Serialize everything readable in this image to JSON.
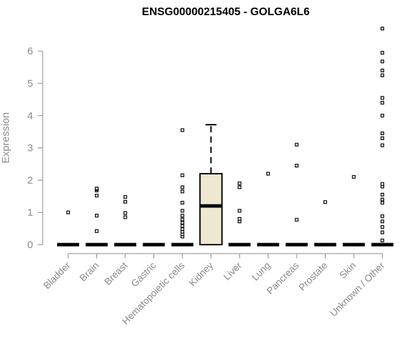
{
  "chart_data": {
    "type": "boxplot",
    "title": "ENSG00000215405 - GOLGA6L6",
    "xlabel": "",
    "ylabel": "Expression",
    "ylim": [
      0,
      7
    ],
    "yticks": [
      0,
      1,
      2,
      3,
      4,
      5,
      6
    ],
    "grid": false,
    "legend": "none",
    "colors": {
      "axis": "#8a8a8a",
      "box_fill": "#efe8d0",
      "box_stroke": "#000000",
      "median": "#000000",
      "outlier": "#000000",
      "title": "#000000"
    },
    "categories": [
      "Bladder",
      "Brain",
      "Breast",
      "Gastric",
      "Hematopoietic cells",
      "Kidney",
      "Liver",
      "Lung",
      "Pancreas",
      "Prostate",
      "Skin",
      "Unknown / Other"
    ],
    "boxes": [
      {
        "category": "Bladder",
        "min": 0,
        "q1": 0,
        "median": 0,
        "q3": 0,
        "max": 0,
        "outliers": [
          1.0
        ]
      },
      {
        "category": "Brain",
        "min": 0,
        "q1": 0,
        "median": 0,
        "q3": 0,
        "max": 0,
        "outliers": [
          0.42,
          0.9,
          1.52,
          1.68,
          1.72,
          1.74
        ]
      },
      {
        "category": "Breast",
        "min": 0,
        "q1": 0,
        "median": 0,
        "q3": 0,
        "max": 0,
        "outliers": [
          0.85,
          0.98,
          1.33,
          1.48
        ]
      },
      {
        "category": "Gastric",
        "min": 0,
        "q1": 0,
        "median": 0,
        "q3": 0,
        "max": 0,
        "outliers": []
      },
      {
        "category": "Hematopoietic cells",
        "min": 0,
        "q1": 0,
        "median": 0,
        "q3": 0,
        "max": 0,
        "outliers": [
          0.25,
          0.32,
          0.4,
          0.48,
          0.58,
          0.68,
          0.78,
          0.9,
          1.05,
          1.3,
          1.65,
          1.78,
          2.15,
          3.55
        ]
      },
      {
        "category": "Kidney",
        "min": 0,
        "q1": 0,
        "median": 1.2,
        "q3": 2.2,
        "max": 3.72,
        "outliers": []
      },
      {
        "category": "Liver",
        "min": 0,
        "q1": 0,
        "median": 0,
        "q3": 0,
        "max": 0,
        "outliers": [
          0.72,
          0.8,
          1.05,
          1.78,
          1.9
        ]
      },
      {
        "category": "Lung",
        "min": 0,
        "q1": 0,
        "median": 0,
        "q3": 0,
        "max": 0,
        "outliers": [
          2.2
        ]
      },
      {
        "category": "Pancreas",
        "min": 0,
        "q1": 0,
        "median": 0,
        "q3": 0,
        "max": 0,
        "outliers": [
          0.77,
          2.45,
          3.1
        ]
      },
      {
        "category": "Prostate",
        "min": 0,
        "q1": 0,
        "median": 0,
        "q3": 0,
        "max": 0,
        "outliers": [
          1.32
        ]
      },
      {
        "category": "Skin",
        "min": 0,
        "q1": 0,
        "median": 0,
        "q3": 0,
        "max": 0,
        "outliers": [
          2.1
        ]
      },
      {
        "category": "Unknown / Other",
        "min": 0,
        "q1": 0,
        "median": 0,
        "q3": 0,
        "max": 0,
        "outliers": [
          0.13,
          0.38,
          0.55,
          0.72,
          0.88,
          1.3,
          1.4,
          1.55,
          1.8,
          1.88,
          3.08,
          3.3,
          3.45,
          4.0,
          4.4,
          4.55,
          5.25,
          5.4,
          5.68,
          5.95,
          6.7
        ]
      }
    ]
  }
}
